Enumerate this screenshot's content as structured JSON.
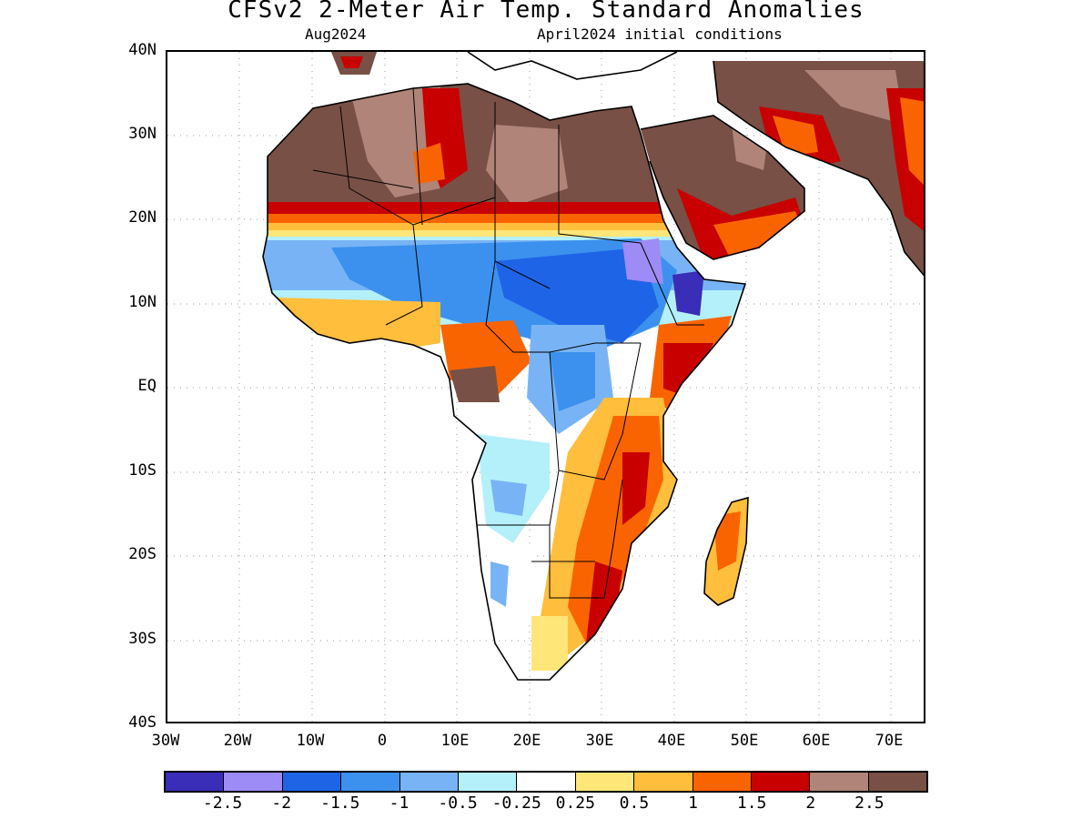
{
  "title": "CFSv2 2-Meter Air Temp. Standard Anomalies",
  "subtitle_left": "Aug2024",
  "subtitle_right": "April2024 initial conditions",
  "lat_labels": [
    "40N",
    "30N",
    "20N",
    "10N",
    "EQ",
    "10S",
    "20S",
    "30S",
    "40S"
  ],
  "lon_labels": [
    "30W",
    "20W",
    "10W",
    "0",
    "10E",
    "20E",
    "30E",
    "40E",
    "50E",
    "60E",
    "70E"
  ],
  "colorbar": {
    "colors": [
      "#3a2db8",
      "#9d8cf5",
      "#1e64e6",
      "#3c91ee",
      "#78b4f5",
      "#b4f0fa",
      "#ffffff",
      "#ffe678",
      "#ffbe3c",
      "#fa6400",
      "#c80000",
      "#b08478",
      "#785046"
    ],
    "labels": [
      "-2.5",
      "-2",
      "-1.5",
      "-1",
      "-0.5",
      "-0.25",
      "0.25",
      "0.5",
      "1",
      "1.5",
      "2",
      "2.5"
    ]
  }
}
